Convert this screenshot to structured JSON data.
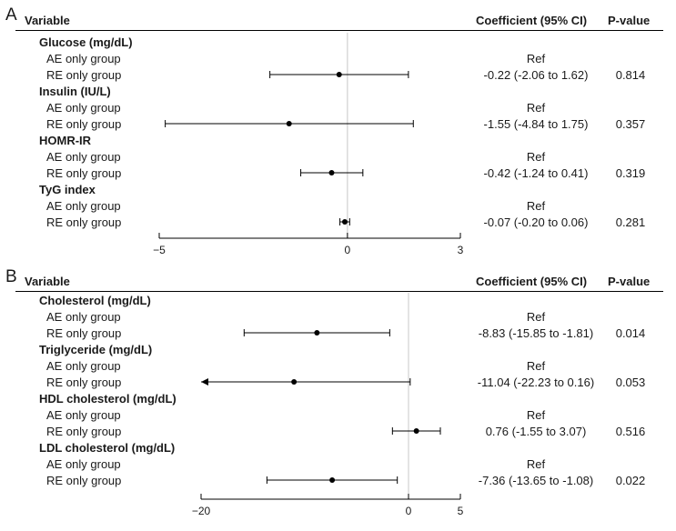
{
  "panels": [
    {
      "label": "A",
      "headers": {
        "variable": "Variable",
        "coefficient": "Coefficient (95% CI)",
        "pvalue": "P-value"
      },
      "xlim": [
        -5,
        3
      ],
      "ticks": [
        {
          "value": -5,
          "label": "−5"
        },
        {
          "value": 0,
          "label": "0"
        },
        {
          "value": 3,
          "label": "3"
        }
      ],
      "groups": [
        {
          "name": "Glucose (mg/dL)",
          "ref_label": "AE only group",
          "ref_text": "Ref",
          "cmp_label": "RE only group",
          "coef_text": "-0.22 (-2.06 to 1.62)",
          "p": "0.814",
          "est": -0.22,
          "lo": -2.06,
          "hi": 1.62
        },
        {
          "name": "Insulin (IU/L)",
          "ref_label": "AE only group",
          "ref_text": "Ref",
          "cmp_label": "RE only group",
          "coef_text": "-1.55 (-4.84 to 1.75)",
          "p": "0.357",
          "est": -1.55,
          "lo": -4.84,
          "hi": 1.75
        },
        {
          "name": "HOMR-IR",
          "ref_label": "AE only group",
          "ref_text": "Ref",
          "cmp_label": "RE only group",
          "coef_text": "-0.42 (-1.24 to 0.41)",
          "p": "0.319",
          "est": -0.42,
          "lo": -1.24,
          "hi": 0.41
        },
        {
          "name": "TyG index",
          "ref_label": "AE only group",
          "ref_text": "Ref",
          "cmp_label": "RE only group",
          "coef_text": "-0.07 (-0.20 to 0.06)",
          "p": "0.281",
          "est": -0.07,
          "lo": -0.2,
          "hi": 0.06
        }
      ]
    },
    {
      "label": "B",
      "headers": {
        "variable": "Variable",
        "coefficient": "Coefficient (95% CI)",
        "pvalue": "P-value"
      },
      "xlim": [
        -20,
        5
      ],
      "ticks": [
        {
          "value": -20,
          "label": "−20"
        },
        {
          "value": 0,
          "label": "0"
        },
        {
          "value": 5,
          "label": "5"
        }
      ],
      "groups": [
        {
          "name": "Cholesterol (mg/dL)",
          "ref_label": "AE only group",
          "ref_text": "Ref",
          "cmp_label": "RE only group",
          "coef_text": "-8.83 (-15.85 to -1.81)",
          "p": "0.014",
          "est": -8.83,
          "lo": -15.85,
          "hi": -1.81
        },
        {
          "name": "Triglyceride (mg/dL)",
          "ref_label": "AE only group",
          "ref_text": "Ref",
          "cmp_label": "RE only group",
          "coef_text": "-11.04 (-22.23 to 0.16)",
          "p": "0.053",
          "est": -11.04,
          "lo": -22.23,
          "hi": 0.16,
          "lo_clipped": true
        },
        {
          "name": "HDL cholesterol (mg/dL)",
          "ref_label": "AE only group",
          "ref_text": "Ref",
          "cmp_label": "RE only group",
          "coef_text": "0.76 (-1.55 to 3.07)",
          "p": "0.516",
          "est": 0.76,
          "lo": -1.55,
          "hi": 3.07
        },
        {
          "name": "LDL cholesterol (mg/dL)",
          "ref_label": "AE only group",
          "ref_text": "Ref",
          "cmp_label": "RE only group",
          "coef_text": "-7.36 (-13.65 to -1.08)",
          "p": "0.022",
          "est": -7.36,
          "lo": -13.65,
          "hi": -1.08
        }
      ]
    }
  ],
  "chart_data": [
    {
      "type": "scatter",
      "panel": "A",
      "categories": [
        "Glucose (mg/dL)",
        "Insulin (IU/L)",
        "HOMR-IR",
        "TyG index"
      ],
      "series": [
        {
          "name": "RE only group",
          "values": [
            -0.22,
            -1.55,
            -0.42,
            -0.07
          ],
          "ci_low": [
            -2.06,
            -4.84,
            -1.24,
            -0.2
          ],
          "ci_high": [
            1.62,
            1.75,
            0.41,
            0.06
          ]
        }
      ],
      "xlim": [
        -5,
        3
      ],
      "ticks": [
        -5,
        0,
        3
      ],
      "reference_line": 0
    },
    {
      "type": "scatter",
      "panel": "B",
      "categories": [
        "Cholesterol (mg/dL)",
        "Triglyceride (mg/dL)",
        "HDL cholesterol (mg/dL)",
        "LDL cholesterol (mg/dL)"
      ],
      "series": [
        {
          "name": "RE only group",
          "values": [
            -8.83,
            -11.04,
            0.76,
            -7.36
          ],
          "ci_low": [
            -15.85,
            -22.23,
            -1.55,
            -13.65
          ],
          "ci_high": [
            -1.81,
            0.16,
            3.07,
            -1.08
          ]
        }
      ],
      "xlim": [
        -20,
        5
      ],
      "ticks": [
        -20,
        0,
        5
      ],
      "reference_line": 0
    }
  ]
}
